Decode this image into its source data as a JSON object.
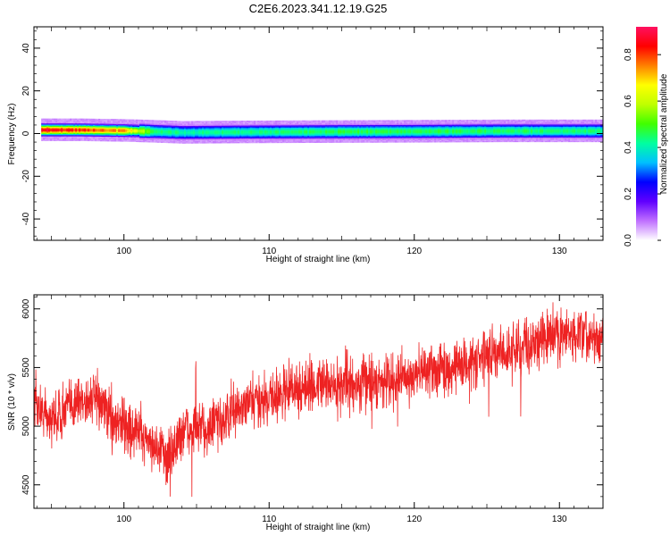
{
  "title": "C2E6.2023.341.12.19.G25",
  "chart_data": [
    {
      "type": "heatmap",
      "xlabel": "Height of straight line (km)",
      "ylabel": "Frequency (Hz)",
      "xlim": [
        93.8,
        133.0
      ],
      "ylim": [
        -50,
        50
      ],
      "xticks": [
        100,
        110,
        120,
        130
      ],
      "yticks": [
        -40,
        -20,
        0,
        20,
        40
      ],
      "colorbar": {
        "label": "Normalized spectral amplitude",
        "range": [
          0.0,
          0.92
        ],
        "ticks": [
          0.0,
          0.2,
          0.4,
          0.6,
          0.8
        ],
        "colormap": "rainbow",
        "colors": [
          "#ffffff",
          "#c070ff",
          "#6000ff",
          "#0000ff",
          "#00c0ff",
          "#00ffa0",
          "#40ff00",
          "#c0ff00",
          "#ffff00",
          "#ff8000",
          "#ff0000",
          "#ff1060"
        ]
      },
      "ridge": [
        {
          "x": 94.3,
          "center": 1.5,
          "peak": 0.85
        },
        {
          "x": 97.0,
          "center": 1.5,
          "peak": 0.78
        },
        {
          "x": 100.0,
          "center": 1.2,
          "peak": 0.7
        },
        {
          "x": 102.0,
          "center": 0.8,
          "peak": 0.45
        },
        {
          "x": 104.0,
          "center": 0.3,
          "peak": 0.4
        },
        {
          "x": 108.0,
          "center": 0.5,
          "peak": 0.42
        },
        {
          "x": 115.0,
          "center": 0.7,
          "peak": 0.45
        },
        {
          "x": 120.0,
          "center": 0.8,
          "peak": 0.45
        },
        {
          "x": 126.0,
          "center": 1.0,
          "peak": 0.44
        },
        {
          "x": 133.0,
          "center": 1.0,
          "peak": 0.42
        }
      ]
    },
    {
      "type": "line",
      "xlabel": "Height of straight line (km)",
      "ylabel": "SNR (10 * v/v)",
      "xlim": [
        93.8,
        133.0
      ],
      "ylim": [
        4300,
        6120
      ],
      "xticks": [
        100,
        110,
        120,
        130
      ],
      "yticks": [
        4500,
        5000,
        5500,
        6000
      ],
      "color": "#ee2222",
      "trend": [
        {
          "x": 93.8,
          "y": 5200
        },
        {
          "x": 95.0,
          "y": 5050
        },
        {
          "x": 96.5,
          "y": 5200
        },
        {
          "x": 98.0,
          "y": 5250
        },
        {
          "x": 99.5,
          "y": 5050
        },
        {
          "x": 101.0,
          "y": 4950
        },
        {
          "x": 102.5,
          "y": 4800
        },
        {
          "x": 103.0,
          "y": 4700
        },
        {
          "x": 104.0,
          "y": 4950
        },
        {
          "x": 106.0,
          "y": 5000
        },
        {
          "x": 108.0,
          "y": 5150
        },
        {
          "x": 110.0,
          "y": 5250
        },
        {
          "x": 113.0,
          "y": 5350
        },
        {
          "x": 116.0,
          "y": 5350
        },
        {
          "x": 119.0,
          "y": 5400
        },
        {
          "x": 122.0,
          "y": 5500
        },
        {
          "x": 125.0,
          "y": 5580
        },
        {
          "x": 128.0,
          "y": 5700
        },
        {
          "x": 130.0,
          "y": 5780
        },
        {
          "x": 133.0,
          "y": 5750
        }
      ],
      "noise_amplitude": 110
    }
  ]
}
